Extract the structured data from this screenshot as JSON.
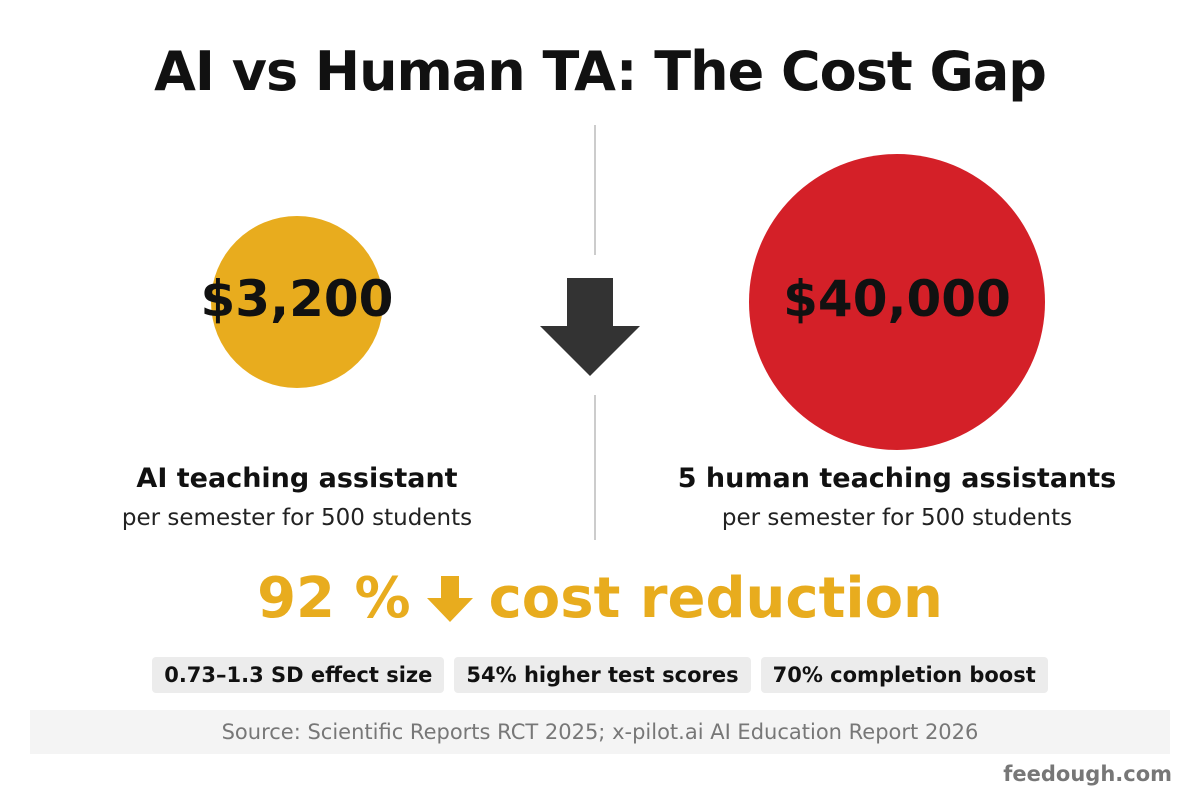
{
  "title": "AI vs Human TA: The Cost Gap",
  "comparison": [
    {
      "amount": "$3,200",
      "label": "AI teaching assistant",
      "note": "per semester for 500 students"
    },
    {
      "amount": "$40,000",
      "label": "5 human teaching assistants",
      "note": "per semester for 500 students"
    }
  ],
  "reduction": {
    "value": "92 %",
    "label": "cost reduction"
  },
  "stats": [
    "0.73–1.3 SD effect size",
    "54% higher test scores",
    "70% completion boost"
  ],
  "source": "Source: Scientific Reports RCT 2025; x-pilot.ai AI Education Report 2026",
  "brand": "feedough.com"
}
